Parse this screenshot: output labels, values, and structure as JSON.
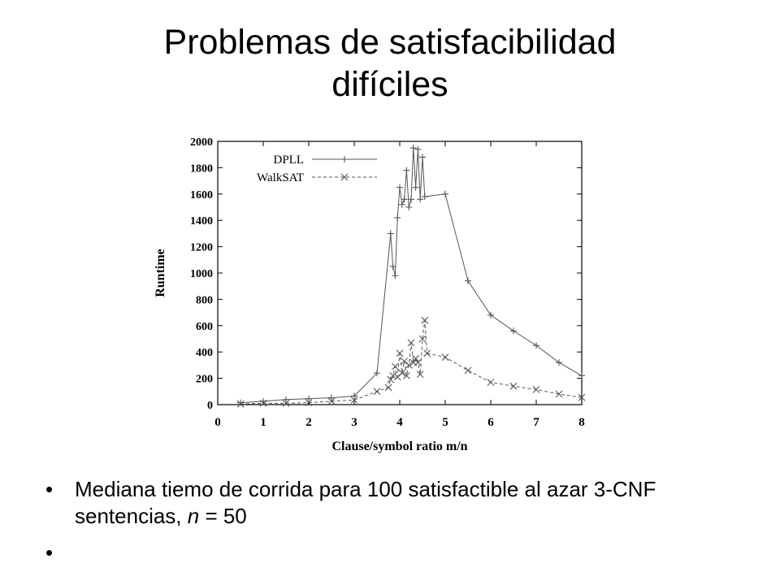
{
  "slide": {
    "title_line1": "Problemas de satisfacibilidad",
    "title_line2": "difíciles",
    "bullet_symbol": "•",
    "bullet1_part1": "Mediana tiemo de corrida para 100 satisfactible al azar 3-CNF sentencias, ",
    "bullet1_var": "n",
    "bullet1_part2": " = 50",
    "bullet2": ""
  },
  "chart_data": {
    "type": "line",
    "title": "",
    "xlabel": "Clause/symbol ratio m/n",
    "ylabel": "Runtime",
    "xlim": [
      0,
      8
    ],
    "ylim": [
      0,
      2000
    ],
    "xticks": [
      0,
      1,
      2,
      3,
      4,
      5,
      6,
      7,
      8
    ],
    "yticks": [
      0,
      200,
      400,
      600,
      800,
      1000,
      1200,
      1400,
      1600,
      1800,
      2000
    ],
    "grid": false,
    "legend_position": "top-left",
    "series": [
      {
        "name": "DPLL",
        "color": "#555555",
        "marker": "plus",
        "line": "solid",
        "x": [
          0.5,
          1,
          1.5,
          2,
          2.5,
          3,
          3.5,
          3.8,
          3.85,
          3.9,
          3.95,
          4.0,
          4.05,
          4.1,
          4.15,
          4.2,
          4.25,
          4.3,
          4.35,
          4.4,
          4.45,
          4.5,
          4.55,
          5,
          5.5,
          6,
          6.5,
          7,
          7.5,
          8
        ],
        "y": [
          15,
          25,
          38,
          45,
          52,
          65,
          240,
          1300,
          1050,
          980,
          1420,
          1650,
          1520,
          1560,
          1780,
          1500,
          1560,
          1950,
          1650,
          1940,
          1560,
          1880,
          1580,
          1600,
          940,
          680,
          560,
          450,
          320,
          220
        ]
      },
      {
        "name": "WalkSAT",
        "color": "#555555",
        "marker": "x",
        "line": "dashed",
        "x": [
          0.5,
          1,
          1.5,
          2,
          2.5,
          3,
          3.5,
          3.75,
          3.8,
          3.85,
          3.9,
          3.95,
          4.0,
          4.05,
          4.1,
          4.15,
          4.2,
          4.25,
          4.3,
          4.35,
          4.4,
          4.45,
          4.5,
          4.55,
          4.6,
          5,
          5.5,
          6,
          6.5,
          7,
          7.5,
          8
        ],
        "y": [
          5,
          10,
          10,
          15,
          25,
          35,
          100,
          130,
          190,
          220,
          290,
          210,
          390,
          240,
          330,
          220,
          300,
          470,
          320,
          350,
          320,
          230,
          500,
          640,
          390,
          360,
          260,
          170,
          140,
          115,
          80,
          55
        ]
      }
    ]
  }
}
